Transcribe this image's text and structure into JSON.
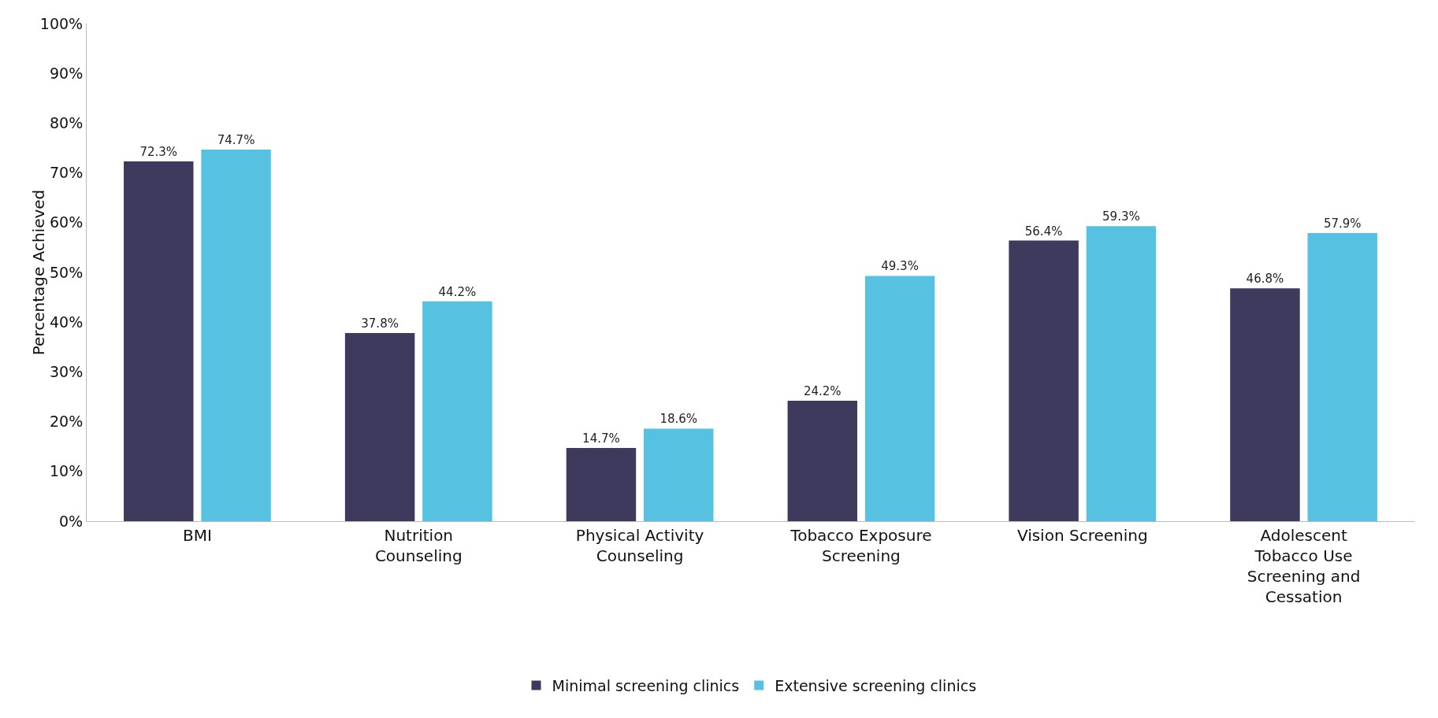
{
  "chart_data": {
    "type": "bar",
    "ylabel": "Percentage Achieved",
    "categories": [
      "BMI",
      "Nutrition Counseling",
      "Physical Activity Counseling",
      "Tobacco Exposure Screening",
      "Vision Screening",
      "Adolescent Tobacco Use Screening and Cessation"
    ],
    "series": [
      {
        "name": "Minimal screening clinics",
        "color": "#3d3a5e",
        "values": [
          72.3,
          37.8,
          14.7,
          24.2,
          56.4,
          46.8
        ],
        "value_labels": [
          "72.3%",
          "37.8%",
          "14.7%",
          "24.2%",
          "56.4%",
          "46.8%"
        ]
      },
      {
        "name": "Extensive screening clinics",
        "color": "#56c1e0",
        "values": [
          74.7,
          44.2,
          18.6,
          49.3,
          59.3,
          57.9
        ],
        "value_labels": [
          "74.7%",
          "44.2%",
          "18.6%",
          "49.3%",
          "59.3%",
          "57.9%"
        ]
      }
    ],
    "ylim": [
      0,
      100
    ],
    "yticks": [
      {
        "value": 0,
        "label": "0%"
      },
      {
        "value": 10,
        "label": "10%"
      },
      {
        "value": 20,
        "label": "20%"
      },
      {
        "value": 30,
        "label": "30%"
      },
      {
        "value": 40,
        "label": "40%"
      },
      {
        "value": 50,
        "label": "50%"
      },
      {
        "value": 60,
        "label": "60%"
      },
      {
        "value": 70,
        "label": "70%"
      },
      {
        "value": 80,
        "label": "80%"
      },
      {
        "value": 90,
        "label": "90%"
      },
      {
        "value": 100,
        "label": "100%"
      }
    ],
    "grid": false,
    "legend": "bottom"
  }
}
